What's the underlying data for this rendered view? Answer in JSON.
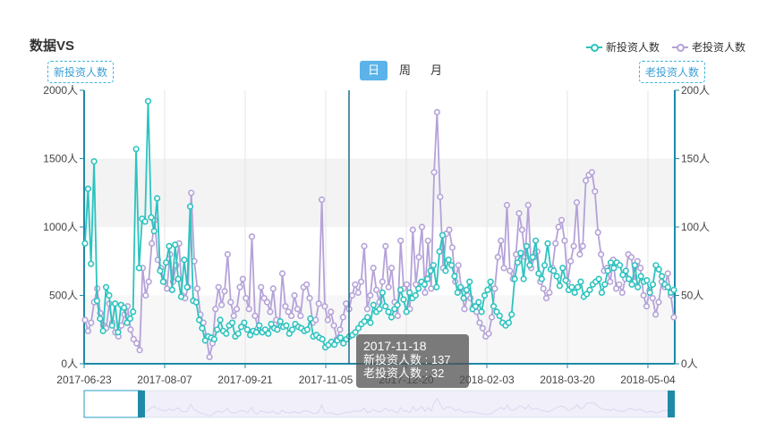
{
  "title": "数据VS",
  "legend": [
    {
      "label": "新投资人数",
      "color": "#2cc3bf"
    },
    {
      "label": "老投资人数",
      "color": "#b5a2d8"
    }
  ],
  "left_axis_tag": "新投资人数",
  "right_axis_tag": "老投资人数",
  "tabs": [
    {
      "label": "日",
      "active": true
    },
    {
      "label": "周",
      "active": false
    },
    {
      "label": "月",
      "active": false
    }
  ],
  "tooltip": {
    "date": "2017-11-18",
    "line1": "新投资人数 : 137",
    "line2": "老投资人数 : 32"
  },
  "chart_data": {
    "type": "line",
    "title": "数据VS",
    "x_tick_labels": [
      "2017-06-23",
      "2017-08-07",
      "2017-09-21",
      "2017-11-05",
      "2017-12-20",
      "2018-02-03",
      "2018-03-20",
      "2018-05-04"
    ],
    "y_left_tick_labels": [
      "0人",
      "500人",
      "1000人",
      "1500人",
      "2000人"
    ],
    "y_right_tick_labels": [
      "0人",
      "50人",
      "100人",
      "150人",
      "200人"
    ],
    "ylim_left": [
      0,
      2000
    ],
    "ylim_right": [
      0,
      200
    ],
    "x_range": [
      "2017-06-23",
      "2018-05-19"
    ],
    "grid": true,
    "legend_position": "top-right",
    "series": [
      {
        "name": "新投资人数",
        "axis": "left",
        "color": "#2cc3bf",
        "values": [
          880,
          1280,
          730,
          1480,
          460,
          330,
          240,
          560,
          500,
          280,
          440,
          230,
          430,
          410,
          300,
          330,
          380,
          1570,
          700,
          1060,
          1040,
          1920,
          1070,
          970,
          1210,
          680,
          600,
          740,
          860,
          540,
          870,
          620,
          490,
          760,
          560,
          1150,
          460,
          450,
          320,
          260,
          170,
          200,
          190,
          180,
          250,
          320,
          240,
          220,
          280,
          300,
          200,
          220,
          270,
          300,
          250,
          210,
          240,
          230,
          280,
          230,
          250,
          220,
          290,
          260,
          250,
          310,
          270,
          280,
          220,
          250,
          290,
          270,
          260,
          240,
          250,
          330,
          200,
          210,
          190,
          180,
          120,
          137,
          160,
          140,
          170,
          190,
          150,
          180,
          200,
          210,
          230,
          260,
          290,
          310,
          340,
          300,
          430,
          380,
          400,
          520,
          420,
          380,
          340,
          400,
          430,
          540,
          470,
          380,
          520,
          480,
          500,
          550,
          600,
          580,
          620,
          680,
          720,
          560,
          820,
          940,
          680,
          760,
          720,
          640,
          520,
          560,
          480,
          540,
          600,
          400,
          420,
          450,
          380,
          500,
          540,
          600,
          420,
          380,
          350,
          300,
          280,
          300,
          360,
          620,
          740,
          810,
          620,
          860,
          720,
          780,
          900,
          660,
          620,
          720,
          880,
          690,
          680,
          640,
          570,
          700,
          610,
          540,
          560,
          520,
          560,
          600,
          490,
          510,
          540,
          580,
          600,
          620,
          520,
          580,
          680,
          740,
          700,
          740,
          720,
          650,
          680,
          620,
          580,
          720,
          560,
          640,
          600,
          610,
          520,
          580,
          720,
          690,
          640,
          580,
          560,
          520,
          540
        ],
        "tooltip_value": 137
      },
      {
        "name": "老投资人数",
        "axis": "right",
        "color": "#b5a2d8",
        "values": [
          32,
          24,
          30,
          45,
          55,
          37,
          28,
          26,
          44,
          30,
          23,
          20,
          28,
          36,
          42,
          25,
          18,
          15,
          10,
          70,
          50,
          60,
          88,
          105,
          76,
          70,
          60,
          55,
          80,
          60,
          72,
          88,
          50,
          48,
          56,
          125,
          75,
          55,
          36,
          30,
          20,
          5,
          15,
          40,
          56,
          43,
          53,
          80,
          45,
          35,
          40,
          56,
          62,
          48,
          40,
          93,
          35,
          26,
          56,
          48,
          45,
          38,
          55,
          32,
          28,
          66,
          42,
          38,
          35,
          50,
          40,
          35,
          56,
          58,
          48,
          30,
          32,
          44,
          120,
          42,
          32,
          38,
          28,
          18,
          25,
          34,
          44,
          40,
          50,
          58,
          52,
          60,
          86,
          40,
          50,
          70,
          54,
          45,
          60,
          86,
          56,
          70,
          45,
          35,
          90,
          55,
          58,
          40,
          98,
          58,
          78,
          100,
          52,
          90,
          55,
          140,
          184,
          122,
          70,
          95,
          98,
          85,
          60,
          72,
          55,
          40,
          50,
          48,
          42,
          38,
          30,
          26,
          20,
          22,
          34,
          55,
          78,
          90,
          70,
          116,
          68,
          62,
          80,
          110,
          98,
          78,
          116,
          70,
          78,
          82,
          60,
          55,
          48,
          52,
          70,
          88,
          100,
          105,
          90,
          60,
          75,
          86,
          118,
          80,
          86,
          134,
          138,
          140,
          126,
          96,
          80,
          68,
          70,
          60,
          76,
          55,
          58,
          52,
          62,
          80,
          78,
          60,
          75,
          70,
          50,
          42,
          54,
          48,
          36,
          45,
          60,
          56,
          66,
          50,
          34
        ]
      }
    ]
  }
}
